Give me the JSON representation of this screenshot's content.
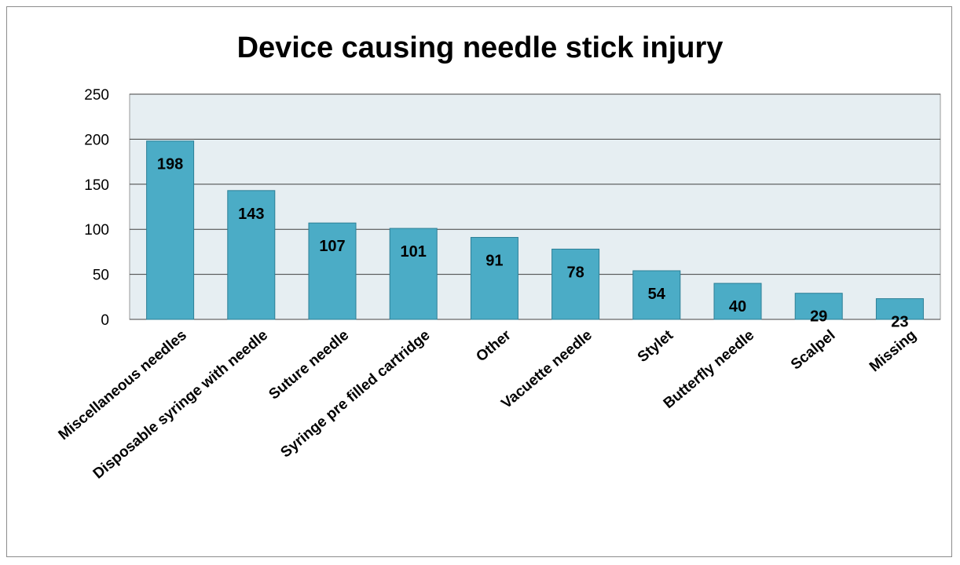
{
  "chart_data": {
    "type": "bar",
    "title": "Device causing needle stick injury",
    "xlabel": "",
    "ylabel": "",
    "categories": [
      "Miscellaneous needles",
      "Disposable syringe with needle",
      "Suture needle",
      "Syringe pre filled cartridge",
      "Other",
      "Vacuette needle",
      "Stylet",
      "Butterfly needle",
      "Scalpel",
      "Missing"
    ],
    "values": [
      198,
      143,
      107,
      101,
      91,
      78,
      54,
      40,
      29,
      23
    ],
    "ylim": [
      0,
      250
    ],
    "yticks": [
      0,
      50,
      100,
      150,
      200,
      250
    ],
    "grid": true,
    "legend": "none",
    "data_labels": true,
    "colors": {
      "bar_fill": "#4bacc6",
      "bar_stroke": "#2c7f96",
      "plot_background": "#e6eef2",
      "grid": "#404040"
    }
  }
}
